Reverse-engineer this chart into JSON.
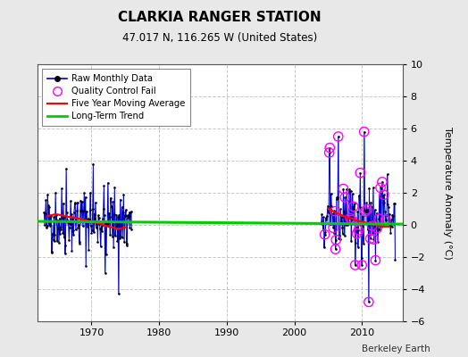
{
  "title": "CLARKIA RANGER STATION",
  "subtitle": "47.017 N, 116.265 W (United States)",
  "ylabel": "Temperature Anomaly (°C)",
  "credit": "Berkeley Earth",
  "ylim": [
    -6,
    10
  ],
  "xlim": [
    1962,
    2016
  ],
  "xticks": [
    1970,
    1980,
    1990,
    2000,
    2010
  ],
  "yticks": [
    -6,
    -4,
    -2,
    0,
    2,
    4,
    6,
    8,
    10
  ],
  "bg_color": "#e8e8e8",
  "plot_bg_color": "#ffffff",
  "long_term_trend_x": [
    1962,
    2016
  ],
  "long_term_trend_y": [
    0.22,
    0.05
  ],
  "ma_seg1_x": [
    1963.5,
    1964.0,
    1964.5,
    1965.0,
    1965.5,
    1966.0,
    1966.5,
    1967.0,
    1967.5,
    1968.0,
    1968.5,
    1969.0,
    1969.5,
    1970.0,
    1970.5,
    1971.0,
    1971.5,
    1972.0,
    1972.5,
    1973.0,
    1973.5,
    1974.0,
    1974.5,
    1975.0
  ],
  "ma_seg1_y": [
    0.55,
    0.6,
    0.65,
    0.65,
    0.6,
    0.55,
    0.5,
    0.5,
    0.45,
    0.4,
    0.35,
    0.3,
    0.25,
    0.2,
    0.15,
    0.1,
    0.05,
    -0.05,
    -0.1,
    -0.15,
    -0.2,
    -0.25,
    -0.2,
    -0.15
  ],
  "ma_seg2_x": [
    2005.0,
    2005.5,
    2006.0,
    2006.5,
    2007.0,
    2007.5,
    2008.0,
    2008.5,
    2009.0,
    2009.5,
    2010.0,
    2010.5,
    2011.0,
    2011.5,
    2012.0,
    2012.5,
    2013.0,
    2013.5,
    2014.0
  ],
  "ma_seg2_y": [
    1.0,
    0.9,
    0.8,
    0.7,
    0.6,
    0.5,
    0.45,
    0.4,
    0.3,
    0.25,
    0.2,
    0.15,
    0.1,
    0.05,
    0.0,
    -0.05,
    -0.1,
    -0.1,
    -0.1
  ]
}
